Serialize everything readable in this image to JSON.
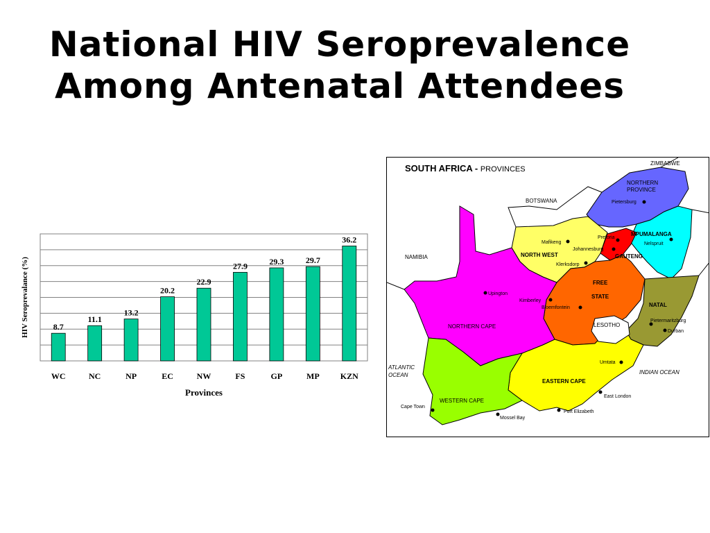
{
  "slide": {
    "title_line1": "National HIV Seroprevalence",
    "title_line2": "Among Antenatal Attendees"
  },
  "chart_data": {
    "type": "bar",
    "categories": [
      "WC",
      "NC",
      "NP",
      "EC",
      "NW",
      "FS",
      "GP",
      "MP",
      "KZN"
    ],
    "values": [
      8.7,
      11.1,
      13.2,
      20.2,
      22.9,
      27.9,
      29.3,
      29.7,
      36.2
    ],
    "xlabel": "Provinces",
    "ylabel": "HIV Seroprevalance (%)",
    "ylim": [
      0,
      40
    ],
    "grid": true,
    "bar_color": "#00c896"
  },
  "map": {
    "title_bold": "SOUTH AFRICA - ",
    "title_rest": "PROVINCES",
    "countries": {
      "zimbabwe": "ZIMBABWE",
      "botswana": "BOTSWANA",
      "namibia": "NAMIBIA",
      "lesotho": "LESOTHO"
    },
    "oceans": {
      "atlantic_1": "ATLANTIC",
      "atlantic_2": "OCEAN",
      "indian": "INDIAN OCEAN"
    },
    "provinces": {
      "northern_province_1": "NORTHERN",
      "northern_province_2": "PROVINCE",
      "mpumalanga": "MPUMALANGA",
      "gauteng": "GAUTENG",
      "north_west": "NORTH WEST",
      "free_state_1": "FREE",
      "free_state_2": "STATE",
      "natal": "NATAL",
      "northern_cape": "NORTHERN CAPE",
      "eastern_cape": "EASTERN CAPE",
      "western_cape": "WESTERN CAPE"
    },
    "cities": {
      "pietersburg": "Pietersburg",
      "pretoria": "Pretoria",
      "nelspruit": "Nelspruit",
      "mafikeng": "Mafikeng",
      "johannesburg": "Johannesburg",
      "klerksdorp": "Klerksdorp",
      "upington": "Upington",
      "kimberley": "Kimberley",
      "bloemfontein": "Bloemfontein",
      "pietermaritzburg": "Pietermaritzburg",
      "durban": "Durban",
      "umtata": "Umtata",
      "east_london": "East London",
      "port_elizabeth": "Port Elizabeth",
      "mossel_bay": "Mossel Bay",
      "cape_town": "Cape Town"
    },
    "colors": {
      "northern_province": "#6666ff",
      "mpumalanga": "#00ffff",
      "gauteng": "#ff0000",
      "north_west": "#ffff66",
      "free_state": "#ff6600",
      "natal": "#999933",
      "northern_cape": "#ff00ff",
      "eastern_cape": "#ffff00",
      "western_cape": "#99ff00"
    }
  }
}
